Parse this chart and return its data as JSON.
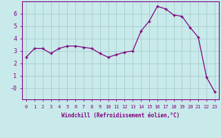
{
  "x": [
    0,
    1,
    2,
    3,
    4,
    5,
    6,
    7,
    8,
    9,
    10,
    11,
    12,
    13,
    14,
    15,
    16,
    17,
    18,
    19,
    20,
    21,
    22,
    23
  ],
  "y": [
    2.5,
    3.2,
    3.2,
    2.8,
    3.2,
    3.4,
    3.4,
    3.3,
    3.2,
    2.8,
    2.5,
    2.7,
    2.9,
    3.0,
    4.6,
    5.4,
    6.6,
    6.4,
    5.9,
    5.8,
    4.9,
    4.1,
    0.9,
    -0.3
  ],
  "line_color": "#800080",
  "marker_color": "#800080",
  "bg_color": "#c8eaea",
  "grid_color": "#a8cccc",
  "xlabel": "Windchill (Refroidissement éolien,°C)",
  "xlim": [
    -0.5,
    23.5
  ],
  "ylim": [
    -0.9,
    7.0
  ],
  "yticks": [
    0,
    1,
    2,
    3,
    4,
    5,
    6
  ],
  "ytick_labels": [
    "-0",
    "1",
    "2",
    "3",
    "4",
    "5",
    "6"
  ],
  "xticks": [
    0,
    1,
    2,
    3,
    4,
    5,
    6,
    7,
    8,
    9,
    10,
    11,
    12,
    13,
    14,
    15,
    16,
    17,
    18,
    19,
    20,
    21,
    22,
    23
  ],
  "purple": "#800080",
  "font_family": "monospace",
  "tick_fontsize": 5,
  "xlabel_fontsize": 5.5
}
